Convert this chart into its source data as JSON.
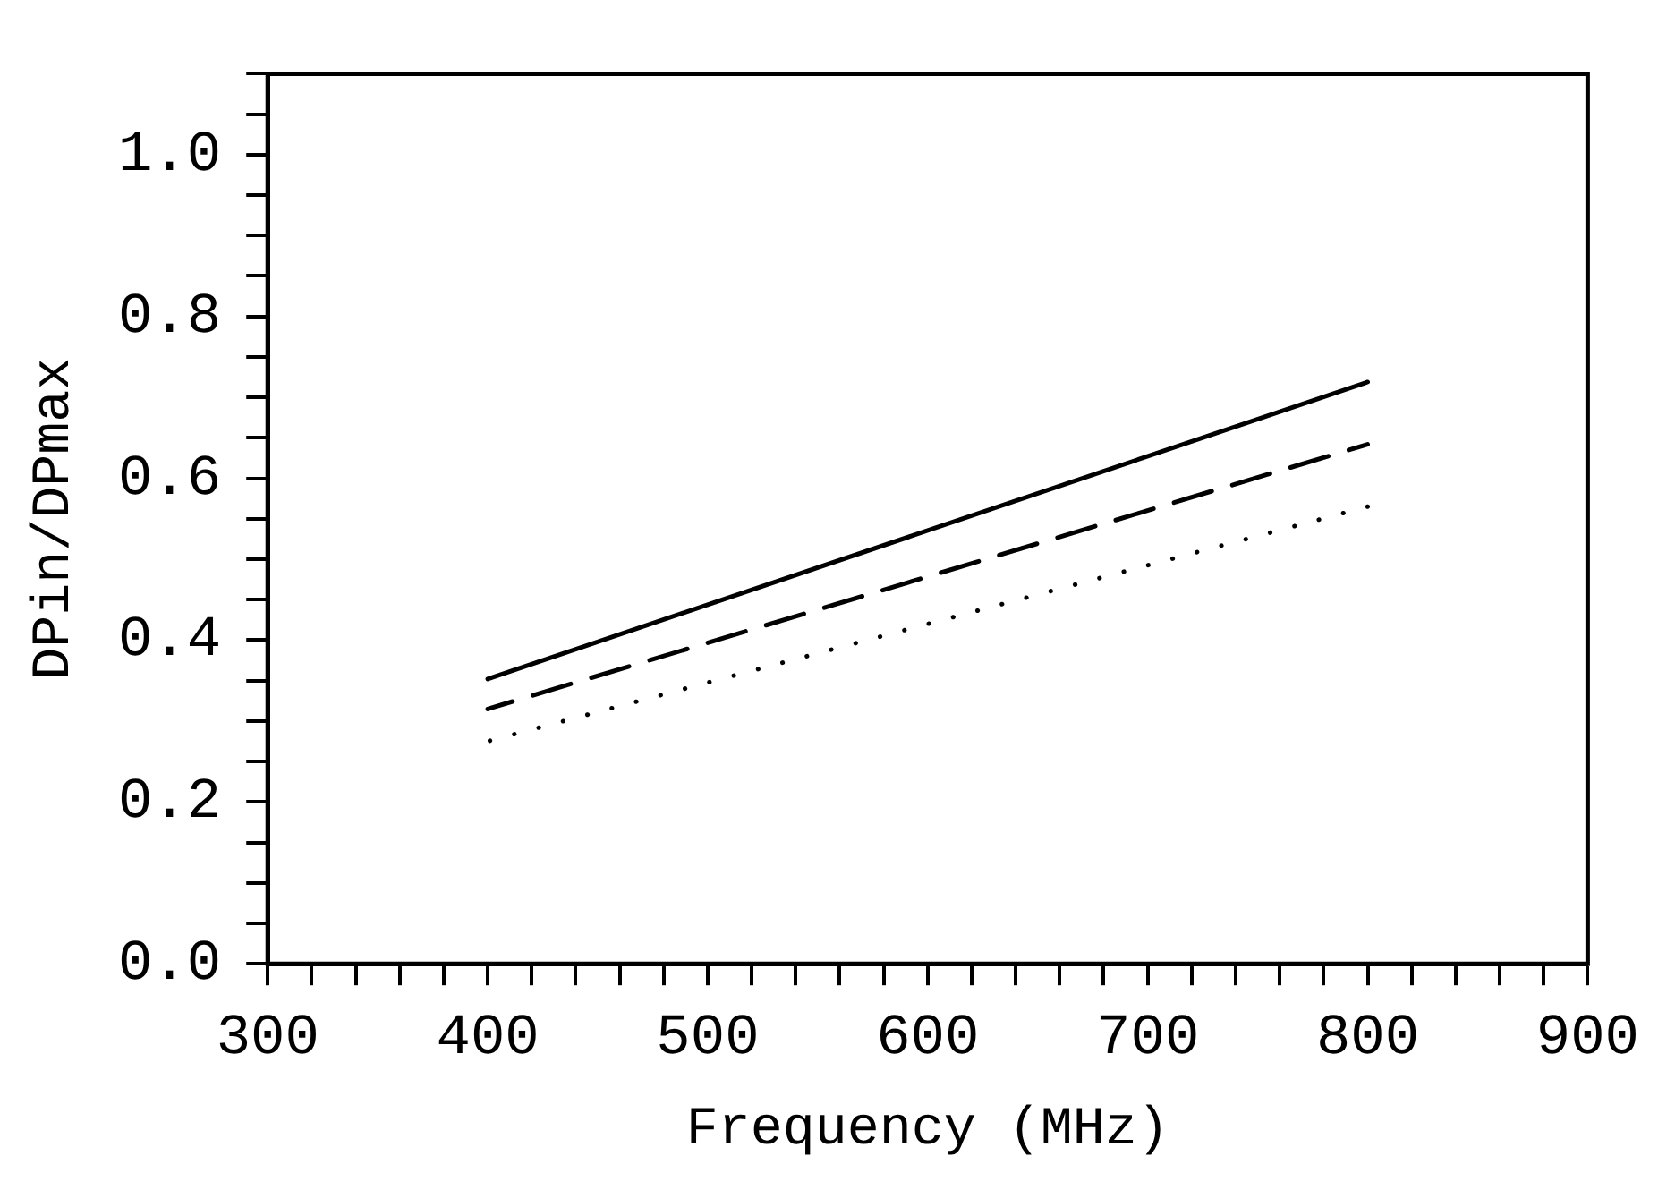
{
  "chart_data": {
    "type": "line",
    "xlabel": "Frequency (MHz)",
    "ylabel": "DPin/DPmax",
    "xlim": [
      300,
      900
    ],
    "ylim": [
      0,
      1.1
    ],
    "xticks": [
      300,
      {
        "value": 320,
        "label": null
      },
      {
        "value": 340,
        "label": null
      },
      {
        "value": 360,
        "label": null
      },
      {
        "value": 380,
        "label": null
      },
      400,
      {
        "value": 420,
        "label": null
      },
      {
        "value": 440,
        "label": null
      },
      {
        "value": 460,
        "label": null
      },
      {
        "value": 480,
        "label": null
      },
      500,
      {
        "value": 520,
        "label": null
      },
      {
        "value": 540,
        "label": null
      },
      {
        "value": 560,
        "label": null
      },
      {
        "value": 580,
        "label": null
      },
      600,
      {
        "value": 620,
        "label": null
      },
      {
        "value": 640,
        "label": null
      },
      {
        "value": 660,
        "label": null
      },
      {
        "value": 680,
        "label": null
      },
      700,
      {
        "value": 720,
        "label": null
      },
      {
        "value": 740,
        "label": null
      },
      {
        "value": 760,
        "label": null
      },
      {
        "value": 780,
        "label": null
      },
      800,
      {
        "value": 820,
        "label": null
      },
      {
        "value": 840,
        "label": null
      },
      {
        "value": 860,
        "label": null
      },
      {
        "value": 880,
        "label": null
      },
      900
    ],
    "yticks": [
      {
        "value": 0,
        "label": "0.0"
      },
      {
        "value": 0.05,
        "label": null
      },
      {
        "value": 0.1,
        "label": null
      },
      {
        "value": 0.15,
        "label": null
      },
      0.2,
      {
        "value": 0.25,
        "label": null
      },
      {
        "value": 0.3,
        "label": null
      },
      {
        "value": 0.35,
        "label": null
      },
      0.4,
      {
        "value": 0.45,
        "label": null
      },
      {
        "value": 0.5,
        "label": null
      },
      {
        "value": 0.55,
        "label": null
      },
      0.6,
      {
        "value": 0.65,
        "label": null
      },
      {
        "value": 0.7,
        "label": null
      },
      {
        "value": 0.75,
        "label": null
      },
      0.8,
      {
        "value": 0.85,
        "label": null
      },
      {
        "value": 0.9,
        "label": null
      },
      {
        "value": 0.95,
        "label": null
      },
      {
        "value": 1,
        "label": "1.0"
      },
      {
        "value": 1.05,
        "label": null
      },
      {
        "value": 1.1,
        "label": null
      }
    ],
    "x": [
      400,
      800
    ],
    "series": [
      {
        "color": "#000000",
        "line_style": "solid",
        "values": [
          0.352,
          0.719
        ]
      },
      {
        "color": "#000000",
        "line_style": "dashed",
        "values": [
          0.315,
          0.642
        ]
      },
      {
        "color": "#000000",
        "line_style": "dotted",
        "values": [
          0.275,
          0.565
        ]
      }
    ],
    "marker": "none",
    "grid": false,
    "legend": false
  }
}
